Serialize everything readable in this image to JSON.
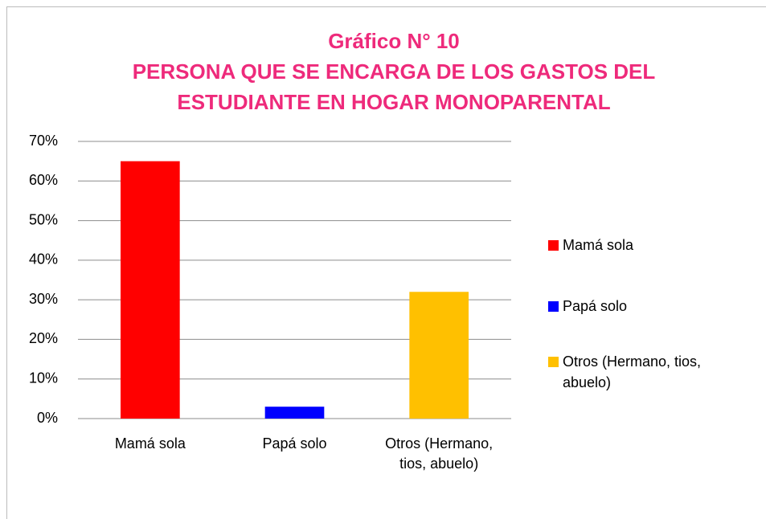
{
  "chart_data": {
    "type": "bar",
    "title": "Gráfico N° 10",
    "subtitle": "PERSONA QUE SE ENCARGA DE LOS GASTOS DEL ESTUDIANTE EN HOGAR MONOPARENTAL",
    "categories": [
      "Mamá sola",
      "Papá solo",
      "Otros (Hermano, tios, abuelo)"
    ],
    "values": [
      65,
      3,
      32
    ],
    "colors": [
      "#ff0000",
      "#0000ff",
      "#ffc000"
    ],
    "ylim": [
      0,
      70
    ],
    "yticks": [
      {
        "value": 0,
        "label": "0%"
      },
      {
        "value": 10,
        "label": "10%"
      },
      {
        "value": 20,
        "label": "20%"
      },
      {
        "value": 30,
        "label": "30%"
      },
      {
        "value": 40,
        "label": "40%"
      },
      {
        "value": 50,
        "label": "50%"
      },
      {
        "value": 60,
        "label": "60%"
      },
      {
        "value": 70,
        "label": "70%"
      }
    ],
    "grid": true,
    "legend": "right"
  }
}
